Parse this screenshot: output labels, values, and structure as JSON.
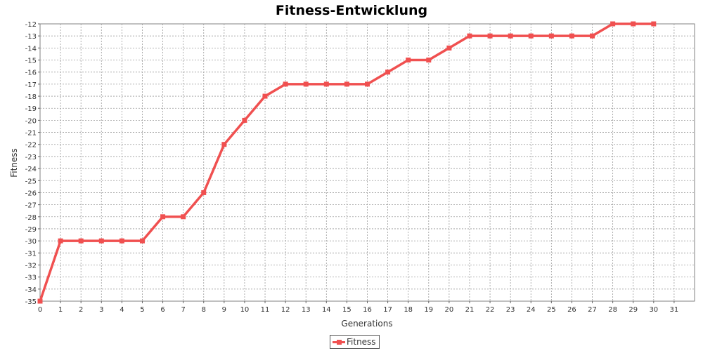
{
  "chart_data": {
    "type": "line",
    "title": "Fitness-Entwicklung",
    "xlabel": "Generations",
    "ylabel": "Fitness",
    "xlim": [
      0,
      32
    ],
    "ylim": [
      -35,
      -12
    ],
    "x_ticks": [
      0,
      1,
      2,
      3,
      4,
      5,
      6,
      7,
      8,
      9,
      10,
      11,
      12,
      13,
      14,
      15,
      16,
      17,
      18,
      19,
      20,
      21,
      22,
      23,
      24,
      25,
      26,
      27,
      28,
      29,
      30,
      31
    ],
    "y_ticks": [
      -35,
      -34,
      -33,
      -32,
      -31,
      -30,
      -29,
      -28,
      -27,
      -26,
      -25,
      -24,
      -23,
      -22,
      -21,
      -20,
      -19,
      -18,
      -17,
      -16,
      -15,
      -14,
      -13,
      -12
    ],
    "grid": true,
    "legend_position": "bottom-center",
    "series": [
      {
        "name": "Fitness",
        "color": "#f05050",
        "x": [
          0,
          1,
          2,
          3,
          4,
          5,
          6,
          7,
          8,
          9,
          10,
          11,
          12,
          13,
          14,
          15,
          16,
          17,
          18,
          19,
          20,
          21,
          22,
          23,
          24,
          25,
          26,
          27,
          28,
          29,
          30
        ],
        "y": [
          -35,
          -30,
          -30,
          -30,
          -30,
          -30,
          -28,
          -28,
          -26,
          -22,
          -20,
          -18,
          -17,
          -17,
          -17,
          -17,
          -17,
          -16,
          -15,
          -15,
          -14,
          -13,
          -13,
          -13,
          -13,
          -13,
          -13,
          -13,
          -12,
          -12,
          -12
        ]
      }
    ]
  }
}
